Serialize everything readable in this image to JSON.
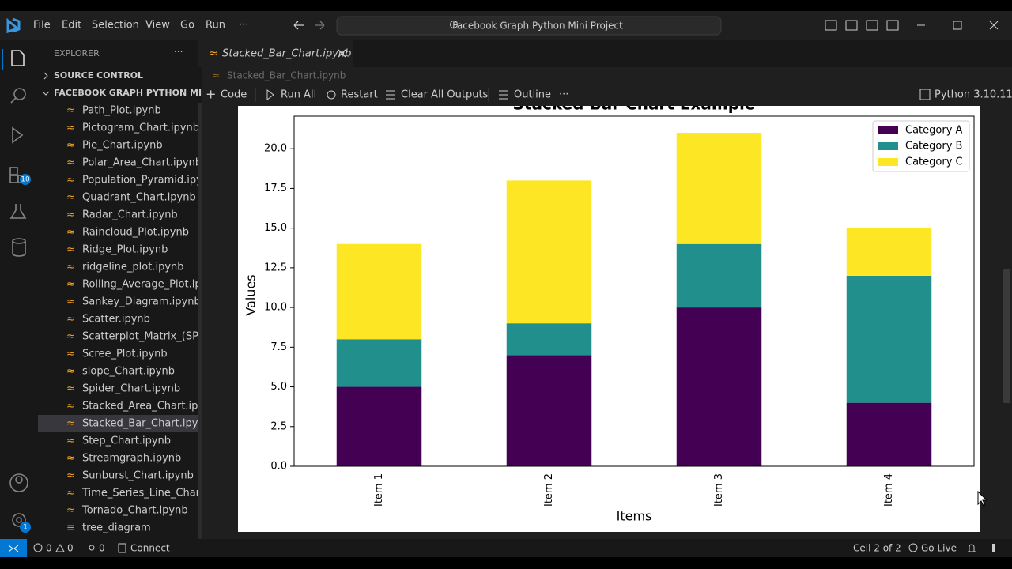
{
  "title_bar": {
    "menu": [
      "File",
      "Edit",
      "Selection",
      "View",
      "Go",
      "Run",
      "···"
    ],
    "search": "Facebook Graph Python Mini Project"
  },
  "activity_bar": {
    "extensions_badge": "10",
    "settings_badge": "1"
  },
  "sidebar": {
    "header": "EXPLORER",
    "source_control": "SOURCE CONTROL",
    "folder": "FACEBOOK GRAPH PYTHON MI...",
    "files": [
      "Path_Plot.ipynb",
      "Pictogram_Chart.ipynb",
      "Pie_Chart.ipynb",
      "Polar_Area_Chart.ipynb",
      "Population_Pyramid.ipy...",
      "Quadrant_Chart.ipynb",
      "Radar_Chart.ipynb",
      "Raincloud_Plot.ipynb",
      "Ridge_Plot.ipynb",
      "ridgeline_plot.ipynb",
      "Rolling_Average_Plot.ip...",
      "Sankey_Diagram.ipynb",
      "Scatter.ipynb",
      "Scatterplot_Matrix_(SPL...",
      "Scree_Plot.ipynb",
      "slope_Chart.ipynb",
      "Spider_Chart.ipynb",
      "Stacked_Area_Chart.ipy...",
      "Stacked_Bar_Chart.ipynb",
      "Step_Chart.ipynb",
      "Streamgraph.ipynb",
      "Sunburst_Chart.ipynb",
      "Time_Series_Line_Chart...",
      "Tornado_Chart.ipynb",
      "tree_diagram"
    ]
  },
  "editor": {
    "tab": "Stacked_Bar_Chart.ipynb",
    "breadcrumb": "Stacked_Bar_Chart.ipynb",
    "toolbar": [
      "Code",
      "Run All",
      "Restart",
      "Clear All Outputs",
      "Outline",
      "···"
    ],
    "kernel": "Python 3.10.11"
  },
  "status_bar": {
    "errors": "0",
    "warnings": "0",
    "ports": "0",
    "connect": "Connect",
    "cell": "Cell 2 of 2",
    "go_live": "Go Live"
  },
  "chart_data": {
    "type": "stacked_bar",
    "title": "Stacked Bar Chart Example",
    "x_label": "Items",
    "y_label": "Values",
    "categories": [
      "Item 1",
      "Item 2",
      "Item 3",
      "Item 4"
    ],
    "series": [
      {
        "name": "Category A",
        "color": "#440154",
        "values": [
          5,
          7,
          10,
          4
        ]
      },
      {
        "name": "Category B",
        "color": "#21908d",
        "values": [
          3,
          2,
          4,
          8
        ]
      },
      {
        "name": "Category C",
        "color": "#fde725",
        "values": [
          6,
          9,
          7,
          3
        ]
      }
    ],
    "ylim": [
      0,
      22.05
    ],
    "yticks": [
      {
        "value": 0,
        "label": "0.0"
      },
      {
        "value": 2.5,
        "label": "2.5"
      },
      {
        "value": 5,
        "label": "5.0"
      },
      {
        "value": 7.5,
        "label": "7.5"
      },
      {
        "value": 10,
        "label": "10.0"
      },
      {
        "value": 12.5,
        "label": "12.5"
      },
      {
        "value": 15,
        "label": "15.0"
      },
      {
        "value": 17.5,
        "label": "17.5"
      },
      {
        "value": 20,
        "label": "20.0"
      }
    ],
    "legend": "upper right",
    "grid": false
  }
}
